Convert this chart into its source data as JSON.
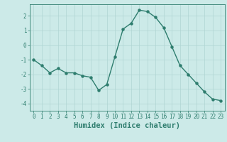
{
  "xlabel": "Humidex (Indice chaleur)",
  "x_values": [
    0,
    1,
    2,
    3,
    4,
    5,
    6,
    7,
    8,
    9,
    10,
    11,
    12,
    13,
    14,
    15,
    16,
    17,
    18,
    19,
    20,
    21,
    22,
    23
  ],
  "y_values": [
    -1.0,
    -1.4,
    -1.9,
    -1.6,
    -1.9,
    -1.9,
    -2.1,
    -2.2,
    -3.1,
    -2.7,
    -0.8,
    1.1,
    1.5,
    2.4,
    2.3,
    1.9,
    1.2,
    -0.1,
    -1.4,
    -2.0,
    -2.6,
    -3.2,
    -3.7,
    -3.8
  ],
  "line_color": "#2e7d6e",
  "marker": "o",
  "markersize": 2.2,
  "linewidth": 1.0,
  "background_color": "#cceae8",
  "grid_color": "#b0d5d3",
  "tick_color": "#2e7d6e",
  "label_color": "#2e7d6e",
  "ylim": [
    -4.5,
    2.8
  ],
  "yticks": [
    -4,
    -3,
    -2,
    -1,
    0,
    1,
    2
  ],
  "xlim": [
    -0.5,
    23.5
  ],
  "xticks": [
    0,
    1,
    2,
    3,
    4,
    5,
    6,
    7,
    8,
    9,
    10,
    11,
    12,
    13,
    14,
    15,
    16,
    17,
    18,
    19,
    20,
    21,
    22,
    23
  ],
  "tick_fontsize": 5.5,
  "xlabel_fontsize": 7.5,
  "grid_linewidth": 0.5
}
